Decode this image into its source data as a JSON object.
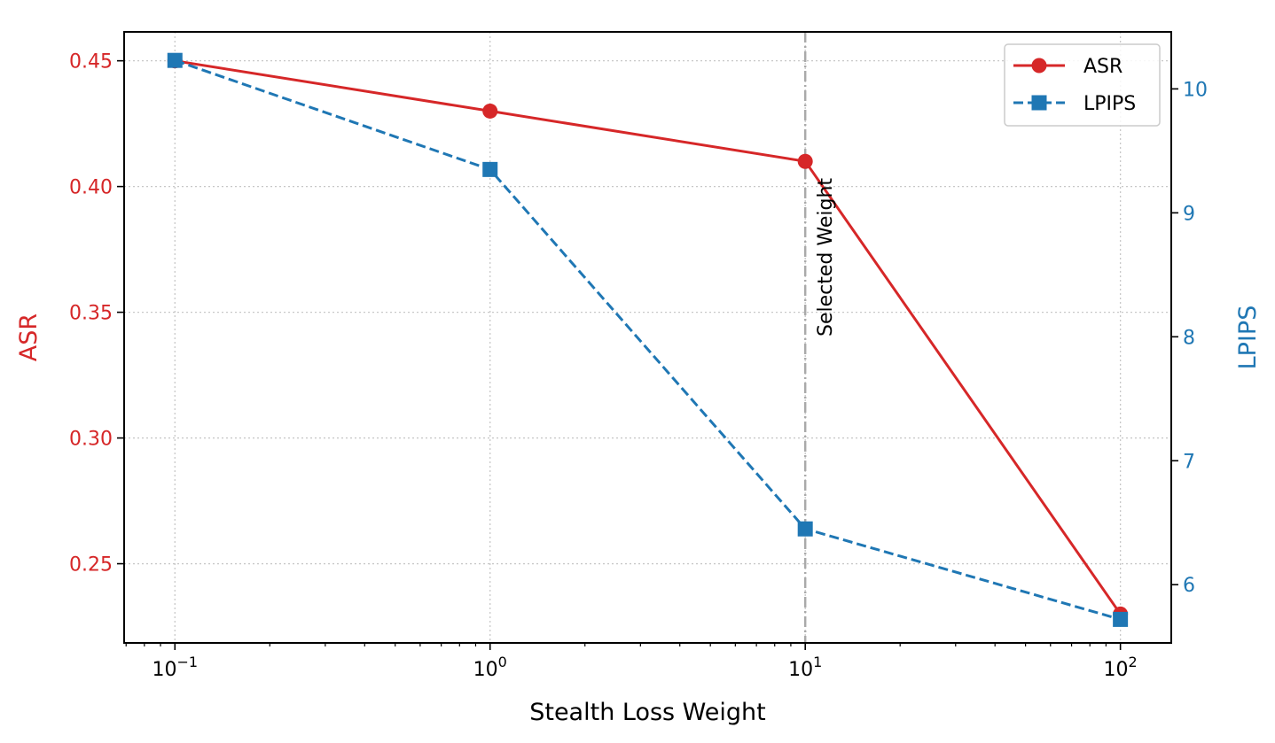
{
  "chart_data": {
    "type": "line",
    "title": "",
    "xlabel": "Stealth Loss Weight",
    "ylabel_left": "ASR",
    "ylabel_right": "LPIPS",
    "xscale": "log",
    "xlim": [
      0.069,
      145
    ],
    "ylim_left": [
      0.2185,
      0.4615
    ],
    "ylim_right": [
      5.53,
      10.46
    ],
    "x": [
      0.1,
      1,
      10,
      100
    ],
    "x_tick_labels": [
      {
        "value": 0.1,
        "base": "10",
        "exp": "−1"
      },
      {
        "value": 1,
        "base": "10",
        "exp": "0"
      },
      {
        "value": 10,
        "base": "10",
        "exp": "1"
      },
      {
        "value": 100,
        "base": "10",
        "exp": "2"
      }
    ],
    "y_left_ticks": [
      {
        "value": 0.25,
        "label": "0.25"
      },
      {
        "value": 0.3,
        "label": "0.30"
      },
      {
        "value": 0.35,
        "label": "0.35"
      },
      {
        "value": 0.4,
        "label": "0.40"
      },
      {
        "value": 0.45,
        "label": "0.45"
      }
    ],
    "y_right_ticks": [
      {
        "value": 6,
        "label": "6"
      },
      {
        "value": 7,
        "label": "7"
      },
      {
        "value": 8,
        "label": "8"
      },
      {
        "value": 9,
        "label": "9"
      },
      {
        "value": 10,
        "label": "10"
      }
    ],
    "series": [
      {
        "name": "ASR",
        "axis": "left",
        "values": [
          0.45,
          0.43,
          0.41,
          0.23
        ],
        "color": "#d62728",
        "style": "solid",
        "marker": "circle"
      },
      {
        "name": "LPIPS",
        "axis": "right",
        "values": [
          10.23,
          9.35,
          6.45,
          5.72
        ],
        "color": "#1f77b4",
        "style": "dashed",
        "marker": "square"
      }
    ],
    "annotation": {
      "text": "Selected Weight",
      "x": 10
    },
    "legend": {
      "position": "top-right",
      "entries": [
        "ASR",
        "LPIPS"
      ]
    },
    "grid": true
  }
}
